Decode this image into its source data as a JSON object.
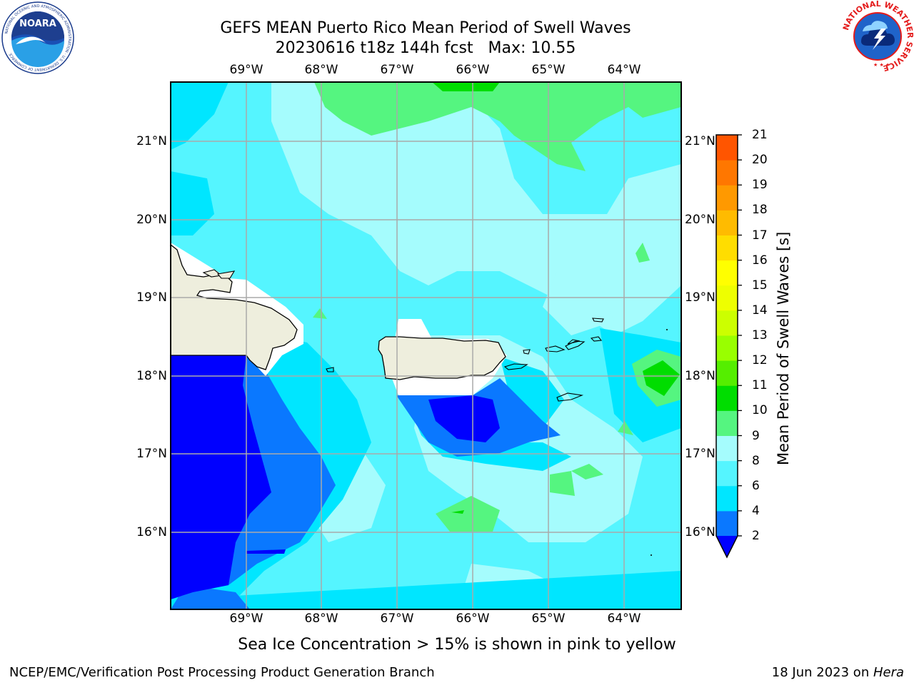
{
  "header": {
    "title_line1": "GEFS MEAN Puerto Rico Mean Period of Swell Waves",
    "title_line2": "20230616 t18z 144h fcst   Max: 10.55"
  },
  "logos": {
    "left": {
      "name": "NOARA",
      "ring_text": "NATIONAL OCEANIC AND ATMOSPHERIC ADMINISTRATION · U.S. DEPARTMENT OF COMMERCE"
    },
    "right": {
      "ring_text": "NATIONAL WEATHER SERVICE"
    }
  },
  "map": {
    "lon_labels": [
      "69°W",
      "68°W",
      "67°W",
      "66°W",
      "65°W",
      "64°W"
    ],
    "lat_labels": [
      "21°N",
      "20°N",
      "19°N",
      "18°N",
      "17°N",
      "16°N"
    ]
  },
  "colorbar": {
    "title": "Mean Period of Swell Waves [s]",
    "ticks": [
      "2",
      "4",
      "6",
      "8",
      "9",
      "10",
      "11",
      "12",
      "13",
      "14",
      "15",
      "16",
      "17",
      "18",
      "19",
      "20",
      "21"
    ],
    "colors": [
      "#0a78ff",
      "#00e6ff",
      "#55f5ff",
      "#a5fcfd",
      "#55f580",
      "#00dd00",
      "#55ee00",
      "#99ff00",
      "#ccff00",
      "#eeff00",
      "#ffff00",
      "#ffdd00",
      "#ffbb00",
      "#ff9900",
      "#ff7700",
      "#ff5500",
      "#ff2200"
    ],
    "under_color": "#0000ff"
  },
  "caption": "Sea Ice Concentration > 15% is shown in pink to yellow",
  "footer": {
    "left": "NCEP/EMC/Verification Post Processing Product Generation Branch",
    "right_date": "18 Jun 2023 on ",
    "right_machine": "Hera"
  }
}
